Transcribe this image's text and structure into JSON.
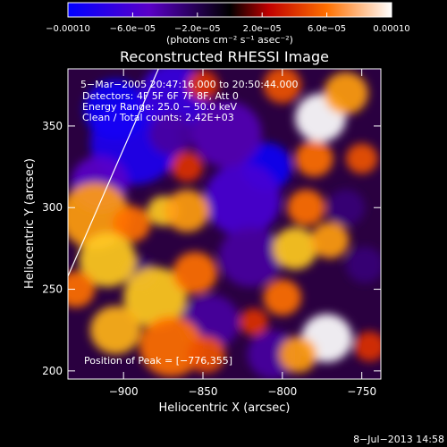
{
  "chart_data": {
    "type": "heatmap",
    "title": "Reconstructed RHESSI Image",
    "xlabel": "Heliocentric X (arcsec)",
    "ylabel": "Heliocentric Y (arcsec)",
    "xlim": [
      -935,
      -738
    ],
    "ylim": [
      195,
      385
    ],
    "x_ticks": [
      -900,
      -850,
      -800,
      -750
    ],
    "x_tick_labels": [
      "−900",
      "−850",
      "−800",
      "−750"
    ],
    "y_ticks": [
      200,
      250,
      300,
      350
    ],
    "y_tick_labels": [
      "200",
      "250",
      "300",
      "350"
    ],
    "colorbar": {
      "min": -0.0001,
      "max": 0.0001,
      "tick_values": [
        -0.0001,
        -6e-05,
        -2e-05,
        2e-05,
        6e-05,
        0.0001
      ],
      "tick_labels": [
        "−0.00010",
        "−6.0e−05",
        "−2.0e−05",
        "2.0e−05",
        "6.0e−05",
        "0.00010"
      ],
      "unit_label": "(photons cm⁻² s⁻¹ asec⁻²)"
    },
    "annotations": [
      "5−Mar−2005 20:47:16.000 to 20:50:44.000",
      "Detectors: 4F 5F 6F 7F 8F, Att 0",
      "Energy Range: 25.0 − 50.0 keV",
      "Clean  / Total counts: 2.42E+03"
    ],
    "peak_label": "Position of Peak = [−776,355]",
    "peak": {
      "x": -776,
      "y": 355
    },
    "limb_line": [
      [
        -935,
        258
      ],
      [
        -878,
        385
      ]
    ],
    "blobs": [
      {
        "x": -893,
        "y": 340,
        "r": 28,
        "v": -8.5e-05
      },
      {
        "x": -905,
        "y": 360,
        "r": 20,
        "v": -9e-05
      },
      {
        "x": -868,
        "y": 368,
        "r": 22,
        "v": -7e-05
      },
      {
        "x": -915,
        "y": 315,
        "r": 18,
        "v": -5e-05
      },
      {
        "x": -870,
        "y": 345,
        "r": 14,
        "v": -4e-05
      },
      {
        "x": -810,
        "y": 325,
        "r": 16,
        "v": -9e-05
      },
      {
        "x": -825,
        "y": 305,
        "r": 24,
        "v": -6e-05
      },
      {
        "x": -820,
        "y": 270,
        "r": 20,
        "v": -4e-05
      },
      {
        "x": -835,
        "y": 345,
        "r": 22,
        "v": -4.5e-05
      },
      {
        "x": -845,
        "y": 230,
        "r": 18,
        "v": -4e-05
      },
      {
        "x": -806,
        "y": 210,
        "r": 16,
        "v": -4e-05
      },
      {
        "x": -890,
        "y": 260,
        "r": 10,
        "v": -3e-05
      },
      {
        "x": -760,
        "y": 300,
        "r": 12,
        "v": -3e-05
      },
      {
        "x": -748,
        "y": 265,
        "r": 12,
        "v": -3e-05
      },
      {
        "x": -918,
        "y": 295,
        "r": 22,
        "v": 7e-05
      },
      {
        "x": -895,
        "y": 290,
        "r": 12,
        "v": 6e-05
      },
      {
        "x": -875,
        "y": 298,
        "r": 10,
        "v": 8e-05
      },
      {
        "x": -860,
        "y": 298,
        "r": 14,
        "v": 7e-05
      },
      {
        "x": -910,
        "y": 268,
        "r": 18,
        "v": 8e-05
      },
      {
        "x": -930,
        "y": 250,
        "r": 12,
        "v": 6e-05
      },
      {
        "x": -880,
        "y": 245,
        "r": 20,
        "v": 8e-05
      },
      {
        "x": -905,
        "y": 225,
        "r": 16,
        "v": 7.5e-05
      },
      {
        "x": -870,
        "y": 215,
        "r": 20,
        "v": 6e-05
      },
      {
        "x": -855,
        "y": 260,
        "r": 14,
        "v": 6e-05
      },
      {
        "x": -848,
        "y": 210,
        "r": 12,
        "v": 5e-05
      },
      {
        "x": -776,
        "y": 355,
        "r": 16,
        "v": 0.0001
      },
      {
        "x": -760,
        "y": 370,
        "r": 14,
        "v": 7e-05
      },
      {
        "x": -780,
        "y": 330,
        "r": 12,
        "v": 6e-05
      },
      {
        "x": -785,
        "y": 300,
        "r": 12,
        "v": 6e-05
      },
      {
        "x": -792,
        "y": 275,
        "r": 14,
        "v": 8e-05
      },
      {
        "x": -770,
        "y": 280,
        "r": 12,
        "v": 7e-05
      },
      {
        "x": -800,
        "y": 245,
        "r": 12,
        "v": 6e-05
      },
      {
        "x": -772,
        "y": 220,
        "r": 16,
        "v": 0.0001
      },
      {
        "x": -790,
        "y": 210,
        "r": 12,
        "v": 7e-05
      },
      {
        "x": -750,
        "y": 330,
        "r": 10,
        "v": 5e-05
      },
      {
        "x": -800,
        "y": 375,
        "r": 12,
        "v": 5e-05
      },
      {
        "x": -850,
        "y": 375,
        "r": 10,
        "v": 4e-05
      },
      {
        "x": -860,
        "y": 325,
        "r": 10,
        "v": 4e-05
      },
      {
        "x": -818,
        "y": 230,
        "r": 9,
        "v": 4e-05
      },
      {
        "x": -745,
        "y": 215,
        "r": 10,
        "v": 4e-05
      }
    ]
  },
  "timestamp": "8−Jul−2013 14:58"
}
